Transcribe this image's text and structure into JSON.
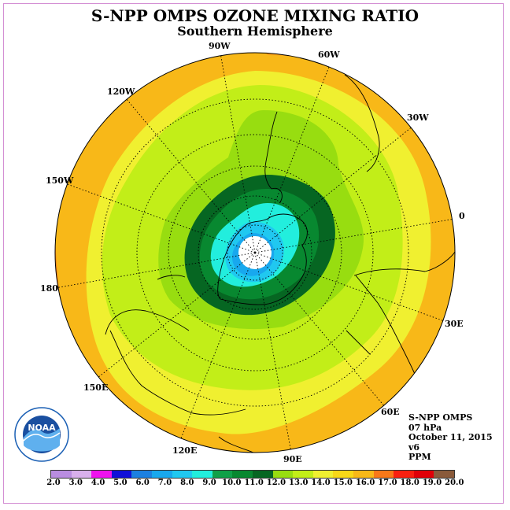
{
  "header": {
    "title": "S-NPP OMPS OZONE MIXING RATIO",
    "subtitle": "Southern Hemisphere"
  },
  "longitude_labels": [
    "90W",
    "60W",
    "30W",
    "0",
    "30E",
    "60E",
    "90E",
    "120E",
    "150E",
    "180",
    "150W",
    "120W"
  ],
  "info": {
    "instrument": "S-NPP OMPS",
    "level": "07 hPa",
    "date": "October 11, 2015",
    "version": "v6",
    "units": "PPM"
  },
  "logo": {
    "text": "NOAA",
    "icon": "noaa-logo-icon"
  },
  "colorbar": {
    "ticks": [
      "2.0",
      "3.0",
      "4.0",
      "5.0",
      "6.0",
      "7.0",
      "8.0",
      "9.0",
      "10.0",
      "11.0",
      "12.0",
      "13.0",
      "14.0",
      "15.0",
      "16.0",
      "17.0",
      "18.0",
      "19.0",
      "20.0"
    ],
    "colors": [
      "#b98de0",
      "#d8b0ec",
      "#ee12ee",
      "#1010d8",
      "#1c80e0",
      "#18a8ee",
      "#20c8f0",
      "#22eedd",
      "#10a048",
      "#088830",
      "#066622",
      "#98dd10",
      "#c2ee18",
      "#f0f030",
      "#f8d818",
      "#f8b818",
      "#f87818",
      "#f82010",
      "#e00008",
      "#8a5a3a"
    ]
  },
  "map_data": {
    "projection": "south polar stereographic",
    "outer_latitude": 0,
    "contour_levels_ppm": [
      {
        "level": 11.5,
        "color": "#066622"
      },
      {
        "level": 11.0,
        "color": "#088830"
      },
      {
        "level": 10.0,
        "color": "#22eedd"
      },
      {
        "level": 8.0,
        "color": "#20c8f0"
      },
      {
        "level": 7.0,
        "color": "#18a8ee"
      }
    ],
    "background_bands": [
      "#f8b818",
      "#f8d818",
      "#f0f030",
      "#c2ee18",
      "#98dd10",
      "#10a048"
    ],
    "pole_no_data": true
  }
}
